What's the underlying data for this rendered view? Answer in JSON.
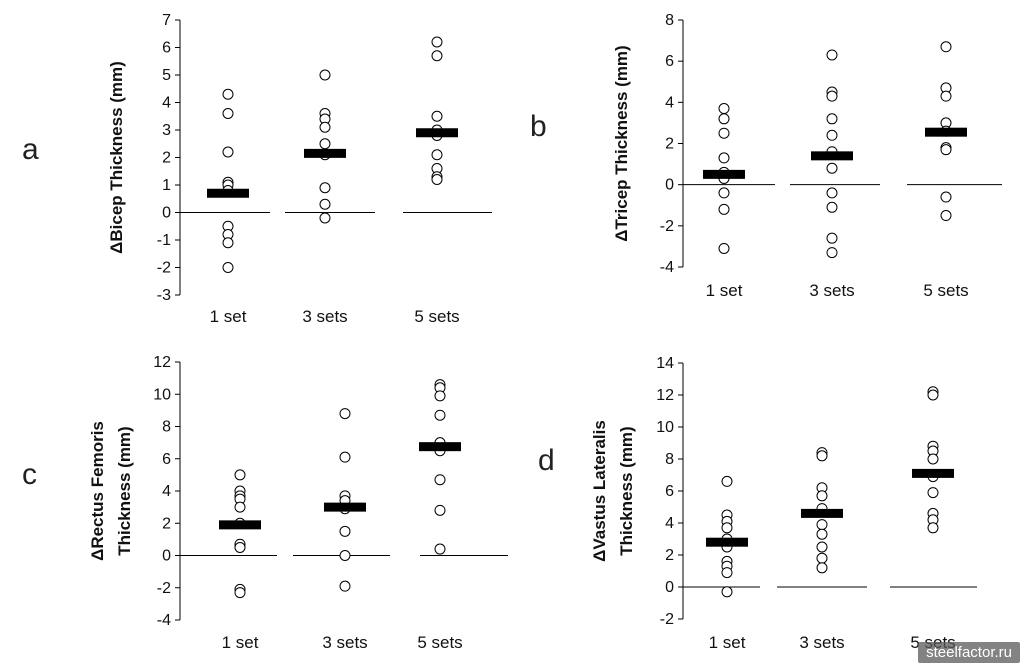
{
  "watermark": "steelfactor.ru",
  "chart_data": [
    {
      "panel": "a",
      "type": "scatter",
      "ylabel": "ΔBicep Thickness (mm)",
      "ylim": [
        -3,
        7
      ],
      "yticks": [
        -3,
        -2,
        -1,
        0,
        1,
        2,
        3,
        4,
        5,
        6,
        7
      ],
      "categories": [
        "1 set",
        "3 sets",
        "5 sets"
      ],
      "points": [
        [
          4.3,
          3.6,
          2.2,
          1.1,
          1.0,
          0.8,
          -0.5,
          -0.8,
          -1.1,
          -2.0
        ],
        [
          5.0,
          3.6,
          3.4,
          3.1,
          2.5,
          2.1,
          0.9,
          0.3,
          -0.2
        ],
        [
          6.2,
          5.7,
          3.5,
          3.0,
          2.8,
          2.1,
          1.6,
          1.3,
          1.2
        ]
      ],
      "means": [
        0.7,
        2.15,
        2.9
      ]
    },
    {
      "panel": "b",
      "type": "scatter",
      "ylabel": "ΔTricep Thickness (mm)",
      "ylim": [
        -4,
        8
      ],
      "yticks": [
        -4,
        -2,
        0,
        2,
        4,
        6,
        8
      ],
      "categories": [
        "1 set",
        "3 sets",
        "5 sets"
      ],
      "points": [
        [
          3.7,
          3.2,
          2.5,
          1.3,
          0.6,
          0.3,
          -0.4,
          -1.2,
          -3.1
        ],
        [
          6.3,
          4.5,
          4.3,
          3.2,
          2.4,
          1.6,
          0.8,
          -0.4,
          -1.1,
          -2.6,
          -3.3
        ],
        [
          6.7,
          4.7,
          4.3,
          3.0,
          2.6,
          1.8,
          1.7,
          -0.6,
          -1.5
        ]
      ],
      "means": [
        0.5,
        1.4,
        2.55
      ]
    },
    {
      "panel": "c",
      "type": "scatter",
      "ylabel": "ΔRectus Femoris Thickness (mm)",
      "ylim": [
        -4,
        12
      ],
      "yticks": [
        -4,
        -2,
        0,
        2,
        4,
        6,
        8,
        10,
        12
      ],
      "categories": [
        "1 set",
        "3 sets",
        "5 sets"
      ],
      "points": [
        [
          5.0,
          4.0,
          3.7,
          3.5,
          3.0,
          2.0,
          0.7,
          0.5,
          -2.1,
          -2.3
        ],
        [
          8.8,
          6.1,
          3.7,
          3.4,
          2.9,
          1.5,
          0.0,
          -1.9
        ],
        [
          10.6,
          10.4,
          9.9,
          8.7,
          7.0,
          6.5,
          4.7,
          2.8,
          0.4
        ]
      ],
      "means": [
        1.9,
        3.0,
        6.75
      ]
    },
    {
      "panel": "d",
      "type": "scatter",
      "ylabel": "ΔVastus Lateralis Thickness (mm)",
      "ylim": [
        -2,
        14
      ],
      "yticks": [
        -2,
        0,
        2,
        4,
        6,
        8,
        10,
        12,
        14
      ],
      "categories": [
        "1 set",
        "3 sets",
        "5 sets"
      ],
      "points": [
        [
          6.6,
          4.5,
          4.1,
          3.7,
          3.0,
          2.5,
          1.6,
          1.3,
          0.9,
          -0.3
        ],
        [
          8.4,
          8.2,
          6.2,
          5.7,
          4.9,
          3.9,
          3.3,
          2.5,
          1.8,
          1.2
        ],
        [
          12.2,
          12.0,
          8.8,
          8.5,
          8.0,
          6.9,
          5.9,
          4.6,
          4.2,
          3.7
        ]
      ],
      "means": [
        2.8,
        4.6,
        7.1
      ]
    }
  ]
}
